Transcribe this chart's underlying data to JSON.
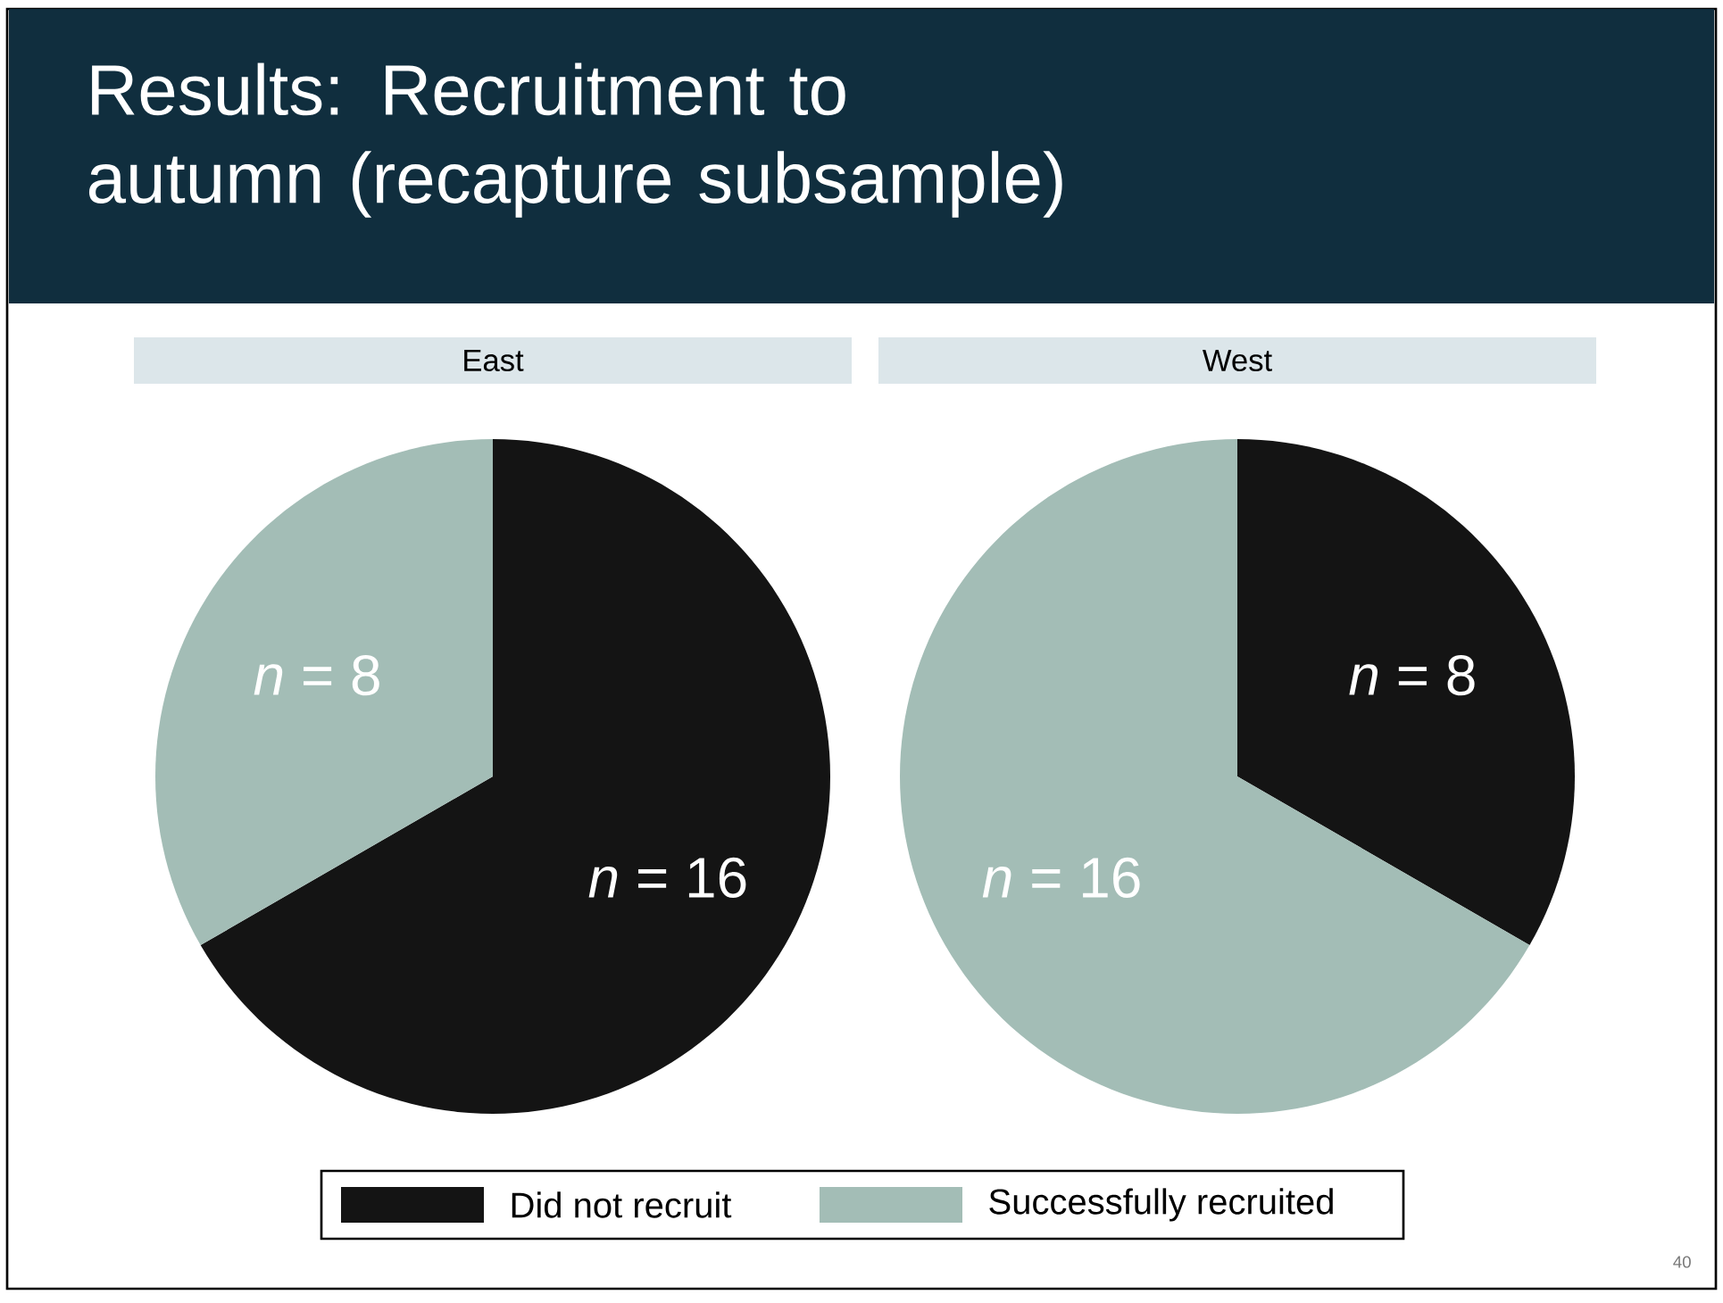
{
  "chart_data": [
    {
      "type": "other",
      "title": "Results: Recruitment to autumn (recapture subsample)",
      "annotations": [
        "40"
      ]
    },
    {
      "type": "pie",
      "title": "East",
      "categories": [
        null,
        null
      ],
      "values": [
        16,
        8
      ],
      "colors": [
        "#141414",
        "#a3bdb6"
      ],
      "value_labels": [
        "*n* = 16",
        "*n* = 8"
      ]
    },
    {
      "type": "pie",
      "title": "West",
      "categories": [
        "Did not recruit",
        "Successfully recruited"
      ],
      "values": [
        8,
        16
      ],
      "colors": [
        "#141414",
        "#a3bdb6"
      ],
      "value_labels": [
        "*n* = 8",
        "*n* = 16"
      ],
      "legend": "bottom"
    }
  ]
}
